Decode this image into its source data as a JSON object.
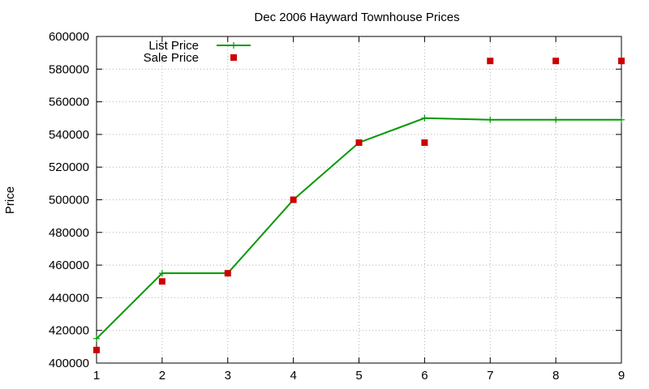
{
  "chart_data": {
    "type": "line",
    "title": "Dec 2006 Hayward Townhouse Prices",
    "xlabel": "",
    "ylabel": "Price",
    "xlim": [
      1,
      9
    ],
    "ylim": [
      400000,
      600000
    ],
    "x_ticks": [
      1,
      2,
      3,
      4,
      5,
      6,
      7,
      8,
      9
    ],
    "y_ticks": [
      400000,
      420000,
      440000,
      460000,
      480000,
      500000,
      520000,
      540000,
      560000,
      580000,
      600000
    ],
    "grid": true,
    "legend_position": "top-left",
    "series": [
      {
        "name": "List Price",
        "style": "lines+points",
        "color": "#009900",
        "x": [
          1,
          2,
          3,
          4,
          5,
          6,
          7,
          8,
          9
        ],
        "y": [
          415000,
          455000,
          455000,
          500000,
          535000,
          550000,
          549000,
          549000,
          549000
        ]
      },
      {
        "name": "Sale Price",
        "style": "points",
        "color": "#cc0000",
        "x": [
          1,
          2,
          3,
          4,
          5,
          6,
          7,
          8,
          9
        ],
        "y": [
          408000,
          450000,
          455000,
          500000,
          535000,
          535000,
          585000,
          585000,
          585000
        ]
      }
    ]
  }
}
